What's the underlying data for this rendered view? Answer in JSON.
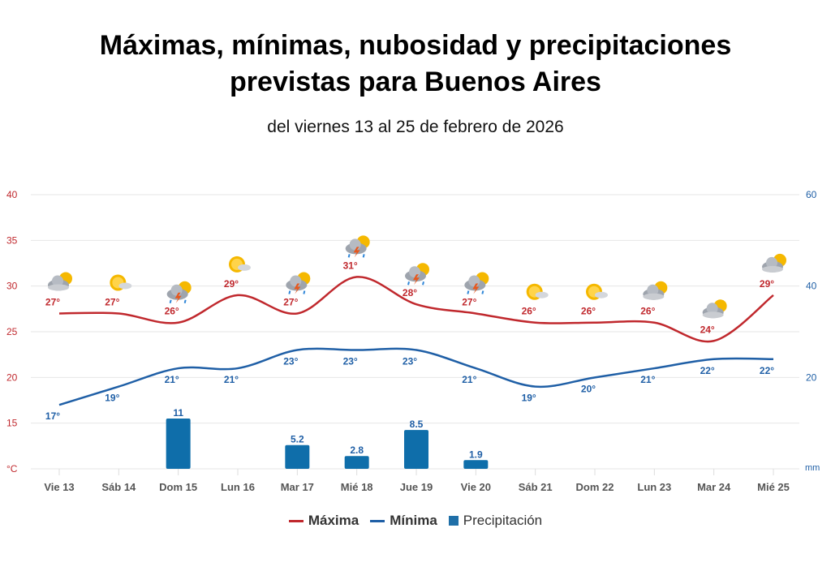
{
  "title_line1": "Máximas, mínimas, nubosidad  y precipitaciones",
  "title_line2": "previstas para Buenos Aires",
  "subtitle": "del viernes 13 al 25 de febrero de 2026",
  "chart_data": {
    "type": "line",
    "categories": [
      "Vie 13",
      "Sáb 14",
      "Dom 15",
      "Lun 16",
      "Mar 17",
      "Mié 18",
      "Jue 19",
      "Vie 20",
      "Sáb 21",
      "Dom 22",
      "Lun 23",
      "Mar 24",
      "Mié 25"
    ],
    "icons": [
      "cloudy-sun",
      "sun-cloud",
      "storm",
      "sun-cloud",
      "storm",
      "storm",
      "storm",
      "storm",
      "sun-cloud",
      "sun-cloud",
      "cloudy-sun",
      "cloudy-sun",
      "cloudy-sun"
    ],
    "series": [
      {
        "name": "Máxima",
        "type": "line",
        "axis": "left",
        "color": "#c0282d",
        "values": [
          27,
          27,
          26,
          29,
          27,
          31,
          28,
          27,
          26,
          26,
          26,
          24,
          29
        ]
      },
      {
        "name": "Mínima",
        "type": "line",
        "axis": "left",
        "color": "#1f5fa6",
        "values": [
          17,
          19,
          21,
          21,
          23,
          23,
          23,
          21,
          19,
          20,
          21,
          22,
          22
        ]
      },
      {
        "name": "Precipitación",
        "type": "bar",
        "axis": "right",
        "color": "#0f6eaa",
        "values": [
          null,
          null,
          11,
          null,
          5.2,
          2.8,
          8.5,
          1.9,
          null,
          null,
          null,
          null,
          null
        ],
        "labels": [
          "",
          "",
          "11",
          "",
          "5.2",
          "2.8",
          "8.5",
          "1.9",
          "",
          "",
          "",
          "",
          ""
        ]
      }
    ],
    "y_left": {
      "ticks": [
        "40",
        "35",
        "30",
        "25",
        "20",
        "15"
      ],
      "unit": "°C",
      "range": [
        10,
        40
      ]
    },
    "y_right": {
      "ticks": [
        "60",
        "40",
        "20"
      ],
      "unit": "mm",
      "range": [
        0,
        60
      ]
    },
    "degree_suffix": "°",
    "grid": true,
    "legend": "bottom"
  }
}
